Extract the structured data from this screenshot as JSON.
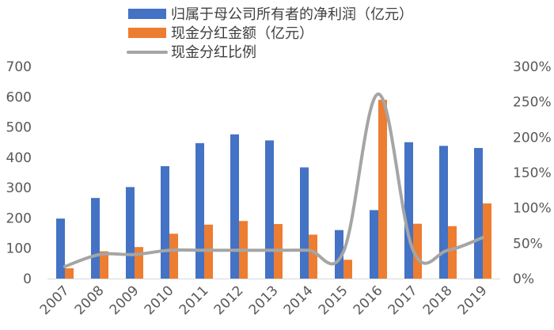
{
  "chart_data": {
    "type": "bar",
    "categories": [
      "2007",
      "2008",
      "2009",
      "2010",
      "2011",
      "2012",
      "2013",
      "2014",
      "2015",
      "2016",
      "2017",
      "2018",
      "2019"
    ],
    "series": [
      {
        "name": "归属于母公司所有者的净利润（亿元）",
        "type": "bar",
        "axis": "left",
        "color": "#4472C4",
        "values": [
          198,
          266,
          302,
          371,
          447,
          476,
          456,
          367,
          160,
          226,
          450,
          438,
          431
        ]
      },
      {
        "name": "现金分红金额（亿元）",
        "type": "bar",
        "axis": "left",
        "color": "#ED7D31",
        "values": [
          34,
          90,
          104,
          148,
          178,
          190,
          180,
          145,
          62,
          590,
          181,
          173,
          248
        ]
      },
      {
        "name": "现金分红比例",
        "type": "line",
        "axis": "right",
        "color": "#A5A5A5",
        "values": [
          0.17,
          0.34,
          0.34,
          0.4,
          0.4,
          0.4,
          0.4,
          0.4,
          0.38,
          2.61,
          0.4,
          0.4,
          0.58
        ]
      }
    ],
    "y_left": {
      "min": 0,
      "max": 700,
      "step": 100,
      "ticks": [
        "0",
        "100",
        "200",
        "300",
        "400",
        "500",
        "600",
        "700"
      ]
    },
    "y_right": {
      "min": 0,
      "max": 3,
      "step": 0.5,
      "ticks": [
        "0%",
        "50%",
        "100%",
        "150%",
        "200%",
        "250%",
        "300%"
      ]
    },
    "grid": false,
    "legend_position": "top-center"
  }
}
